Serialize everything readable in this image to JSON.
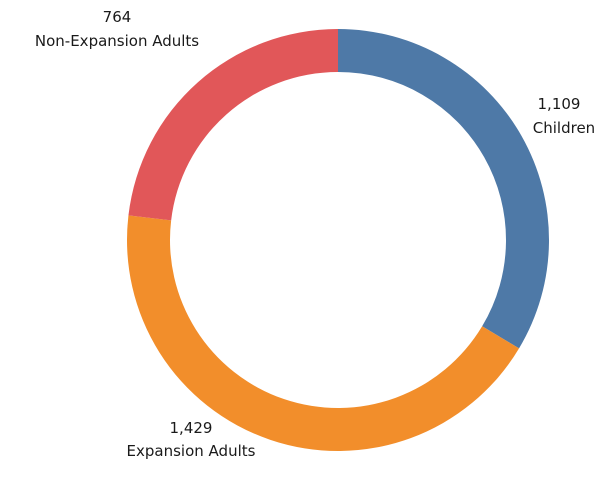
{
  "chart_data": {
    "type": "pie",
    "variant": "donut",
    "slices": [
      {
        "label": "Children",
        "value": 1109,
        "value_text": "1,109",
        "color": "#4e79a7"
      },
      {
        "label": "Expansion Adults",
        "value": 1429,
        "value_text": "1,429",
        "color": "#f28e2b"
      },
      {
        "label": "Non-Expansion Adults",
        "value": 764,
        "value_text": "764",
        "color": "#e15759"
      }
    ],
    "start_angle_deg": 0,
    "direction": "clockwise",
    "legend": "none"
  }
}
